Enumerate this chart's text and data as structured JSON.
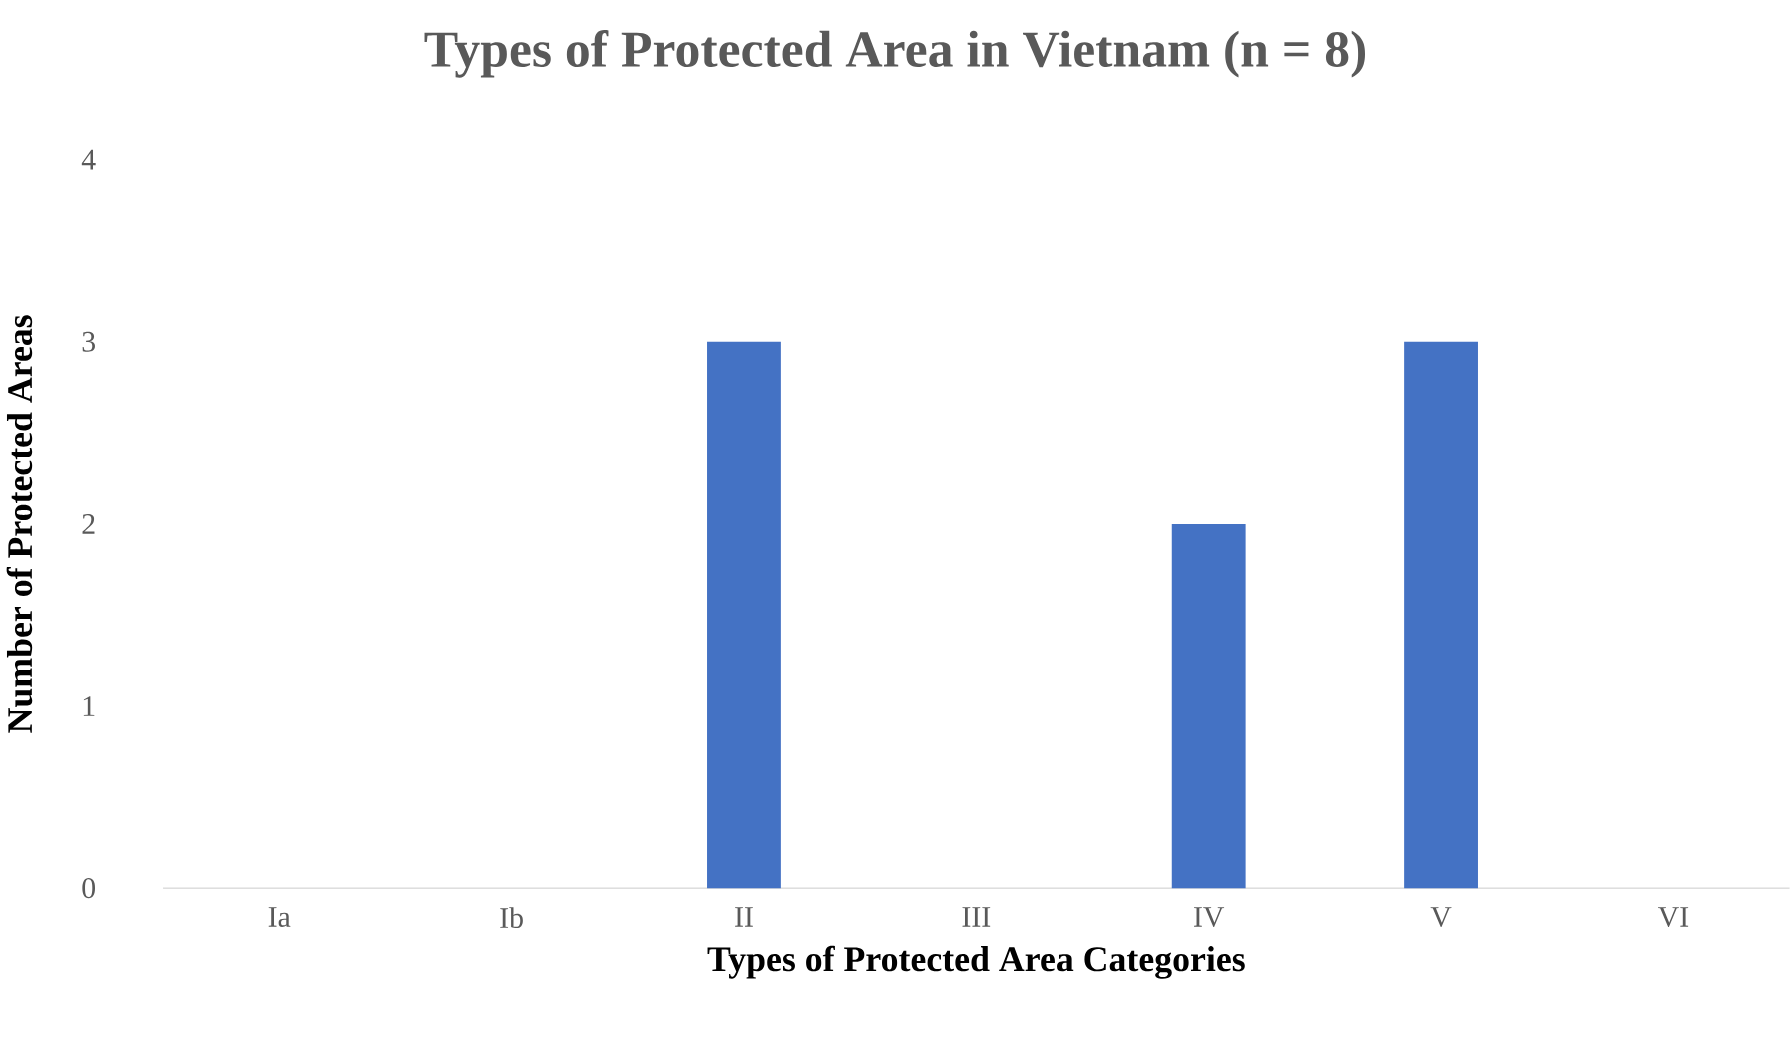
{
  "chart_data": {
    "type": "bar",
    "title": "Types of Protected Area in Vietnam (n = 8)",
    "xlabel": "Types of Protected Area Categories",
    "ylabel": "Number of Protected Areas",
    "categories": [
      "Ia",
      "Ib",
      "II",
      "III",
      "IV",
      "V",
      "VI"
    ],
    "values": [
      0,
      0,
      3,
      0,
      2,
      3,
      0
    ],
    "color": "#4472c4",
    "ylim": [
      0,
      4
    ],
    "yticks": [
      0,
      1,
      2,
      3,
      4
    ]
  }
}
